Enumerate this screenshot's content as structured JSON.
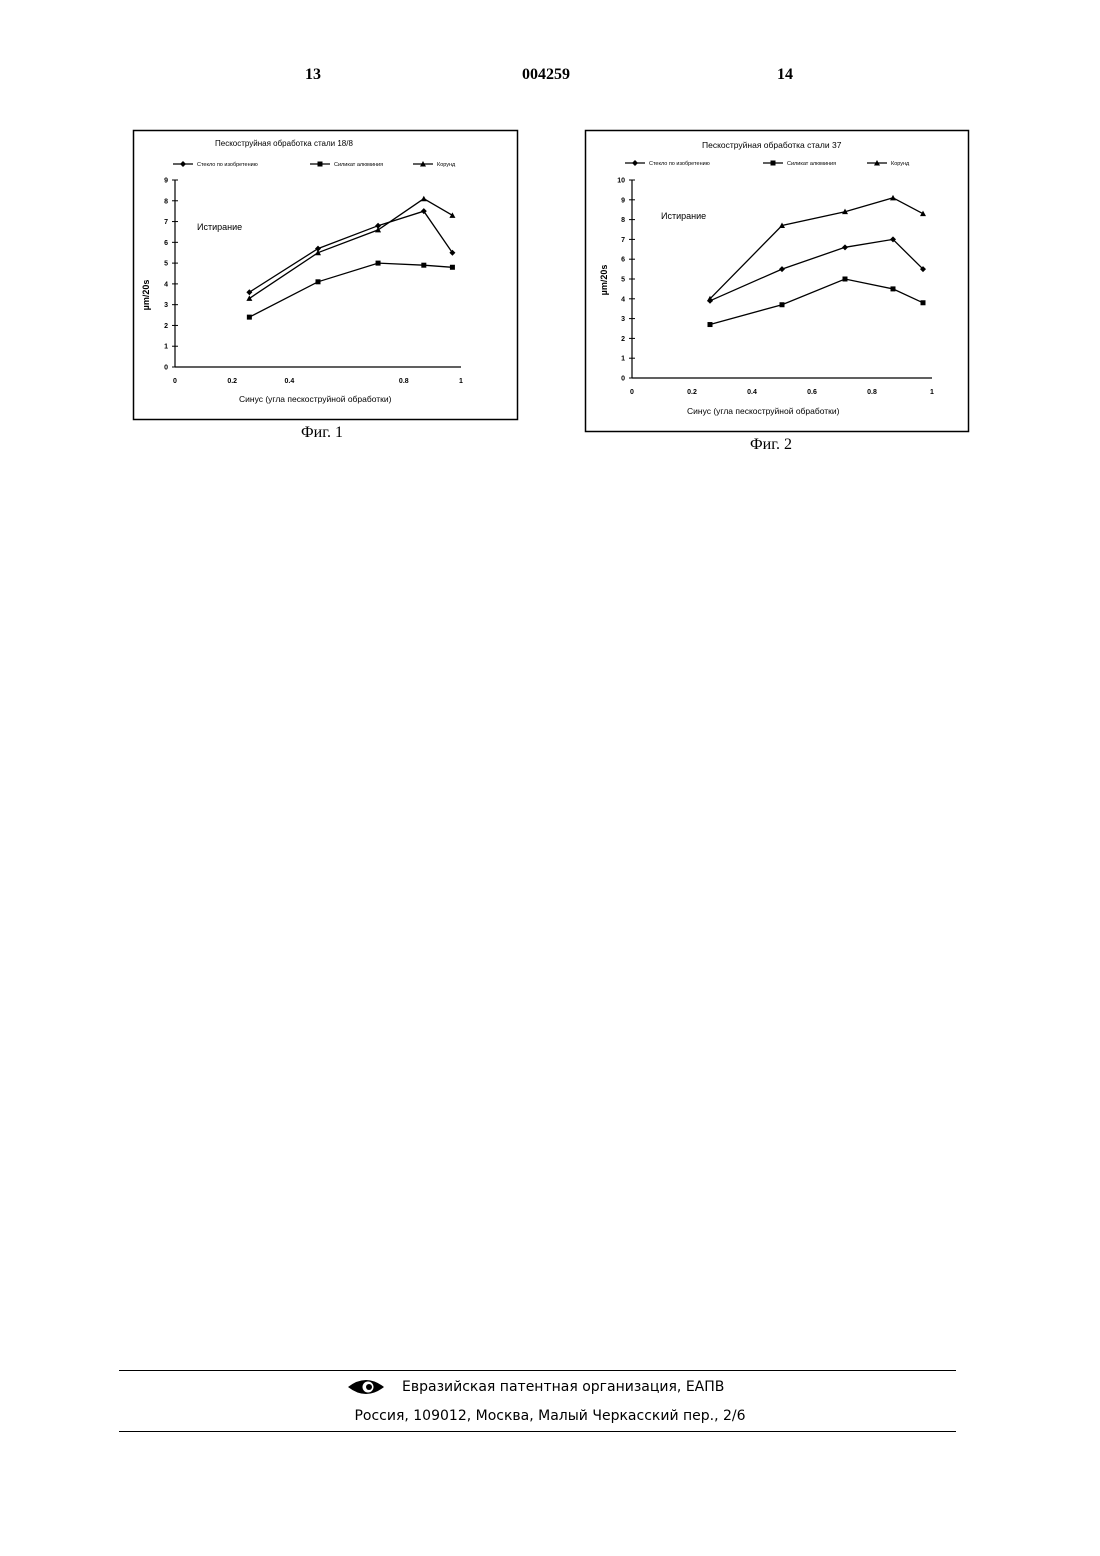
{
  "header": {
    "page_left": "13",
    "doc_number": "004259",
    "page_right": "14"
  },
  "chart_data": [
    {
      "type": "line",
      "title": "Пескоструйная обработка стали 18/8",
      "annotation": "Истирание",
      "xlabel": "Синус (угла пескоструйной обработки)",
      "ylabel": "µm/20s",
      "xlim": [
        0,
        1
      ],
      "ylim": [
        0,
        9
      ],
      "xticks": [
        0,
        0.2,
        0.4,
        0.8,
        1
      ],
      "xtick_labels": [
        "0",
        "0.2",
        "0.4",
        "0.8",
        "1"
      ],
      "yticks": [
        0,
        1,
        2,
        3,
        4,
        5,
        6,
        7,
        8,
        9
      ],
      "ytick_labels": [
        "0",
        "1",
        "2",
        "3",
        "4",
        "5",
        "6",
        "7",
        "8",
        "9"
      ],
      "legend_position": "top",
      "series": [
        {
          "name": "Стекло по изобретению",
          "marker": "diamond",
          "x": [
            0.26,
            0.5,
            0.71,
            0.87,
            0.97
          ],
          "y": [
            3.6,
            5.7,
            6.8,
            7.5,
            5.5
          ]
        },
        {
          "name": "Силикат алюминия",
          "marker": "square",
          "x": [
            0.26,
            0.5,
            0.71,
            0.87,
            0.97
          ],
          "y": [
            2.4,
            4.1,
            5.0,
            4.9,
            4.8
          ]
        },
        {
          "name": "Корунд",
          "marker": "triangle",
          "x": [
            0.26,
            0.5,
            0.71,
            0.87,
            0.97
          ],
          "y": [
            3.3,
            5.5,
            6.6,
            8.1,
            7.3
          ]
        }
      ],
      "caption": "Фиг. 1"
    },
    {
      "type": "line",
      "title": "Пескоструйная обработка стали 37",
      "annotation": "Истирание",
      "xlabel": "Синус (угла пескоструйной обработки)",
      "ylabel": "µm/20s",
      "xlim": [
        0,
        1
      ],
      "ylim": [
        0,
        10
      ],
      "xticks": [
        0,
        0.2,
        0.4,
        0.6,
        0.8,
        1
      ],
      "xtick_labels": [
        "0",
        "0.2",
        "0.4",
        "0.6",
        "0.8",
        "1"
      ],
      "yticks": [
        0,
        1,
        2,
        3,
        4,
        5,
        6,
        7,
        8,
        9,
        10
      ],
      "ytick_labels": [
        "0",
        "1",
        "2",
        "3",
        "4",
        "5",
        "6",
        "7",
        "8",
        "9",
        "10"
      ],
      "legend_position": "top",
      "series": [
        {
          "name": "Стекло по изобретению",
          "marker": "diamond",
          "x": [
            0.26,
            0.5,
            0.71,
            0.87,
            0.97
          ],
          "y": [
            3.9,
            5.5,
            6.6,
            7.0,
            5.5
          ]
        },
        {
          "name": "Силикат алюминия",
          "marker": "square",
          "x": [
            0.26,
            0.5,
            0.71,
            0.87,
            0.97
          ],
          "y": [
            2.7,
            3.7,
            5.0,
            4.5,
            3.8
          ]
        },
        {
          "name": "Корунд",
          "marker": "triangle",
          "x": [
            0.26,
            0.5,
            0.71,
            0.87,
            0.97
          ],
          "y": [
            4.0,
            7.7,
            8.4,
            9.1,
            8.3
          ]
        }
      ],
      "caption": "Фиг. 2"
    }
  ],
  "footer": {
    "org": "Евразийская патентная организация, ЕАПВ",
    "address": "Россия, 109012, Москва, Малый Черкасский пер., 2/6"
  }
}
